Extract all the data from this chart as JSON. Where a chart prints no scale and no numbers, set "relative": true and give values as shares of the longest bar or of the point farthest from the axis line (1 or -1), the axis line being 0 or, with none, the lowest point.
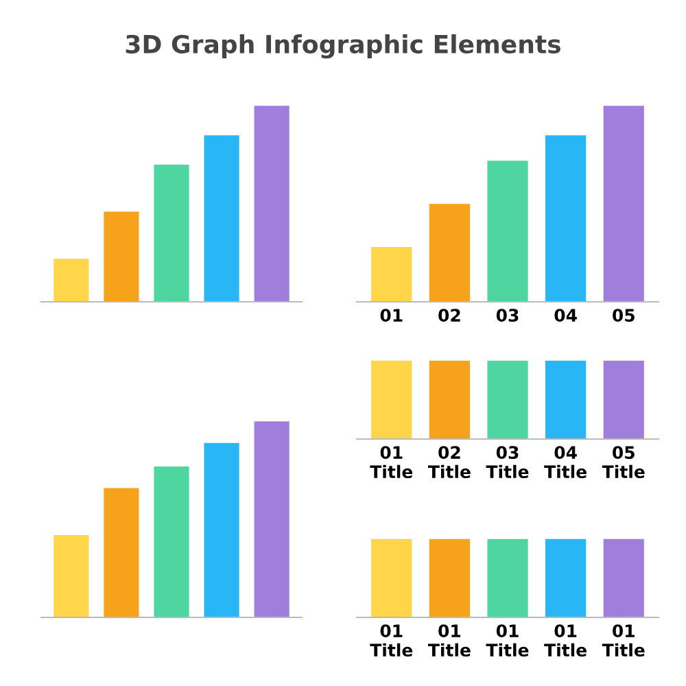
{
  "chart_data": [
    {
      "type": "bar",
      "title": "3D Graph Infographic Elements",
      "relative": true,
      "categories": [
        null,
        null,
        null,
        null,
        null
      ],
      "values": [
        0.22,
        0.46,
        0.7,
        0.85,
        1
      ],
      "colors": [
        "#ffd54a",
        "#f7a21b",
        "#4fd6a0",
        "#29b6f6",
        "#a07fdc"
      ]
    },
    {
      "type": "bar",
      "relative": true,
      "categories": [
        "01",
        "02",
        "03",
        "04",
        "05"
      ],
      "values": [
        0.28,
        0.5,
        0.72,
        0.85,
        1
      ],
      "colors": [
        "#ffd54a",
        "#f7a21b",
        "#4fd6a0",
        "#29b6f6",
        "#a07fdc"
      ]
    },
    {
      "type": "bar",
      "relative": true,
      "categories": [
        "01\nTitle",
        "02\nTitle",
        "03\nTitle",
        "04\nTitle",
        "05\nTitle"
      ],
      "values": [
        1,
        1,
        1,
        1,
        1
      ],
      "colors": [
        "#ffd54a",
        "#f7a21b",
        "#4fd6a0",
        "#29b6f6",
        "#a07fdc"
      ]
    },
    {
      "type": "bar",
      "relative": true,
      "categories": [
        null,
        null,
        null,
        null,
        null
      ],
      "values": [
        0.42,
        0.66,
        0.77,
        0.89,
        1
      ],
      "colors": [
        "#ffd54a",
        "#f7a21b",
        "#4fd6a0",
        "#29b6f6",
        "#a07fdc"
      ]
    },
    {
      "type": "bar",
      "relative": true,
      "categories": [
        "01\nTitle",
        "01\nTitle",
        "01\nTitle",
        "01\nTitle",
        "01\nTitle"
      ],
      "values": [
        1,
        1,
        1,
        1,
        1
      ],
      "colors": [
        "#ffd54a",
        "#f7a21b",
        "#4fd6a0",
        "#29b6f6",
        "#a07fdc"
      ]
    }
  ]
}
